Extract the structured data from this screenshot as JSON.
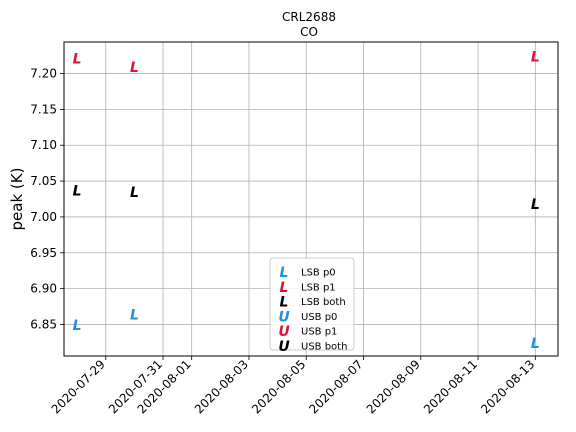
{
  "chart_data": {
    "type": "scatter",
    "title": "CRL2688",
    "subtitle": "CO",
    "xlabel": "",
    "ylabel": "peak (K)",
    "x_ticks": [
      "2020-07-29",
      "2020-07-31",
      "2020-08-01",
      "2020-08-03",
      "2020-08-05",
      "2020-08-07",
      "2020-08-09",
      "2020-08-11",
      "2020-08-13"
    ],
    "y_ticks": [
      "6.85",
      "6.90",
      "6.95",
      "7.00",
      "7.05",
      "7.10",
      "7.15",
      "7.20"
    ],
    "ylim": [
      6.806,
      7.244
    ],
    "xlim": [
      "2020-07-27T13:00",
      "2020-08-13T19:00"
    ],
    "grid": true,
    "legend_position": "lower-center",
    "series": [
      {
        "name": "LSB p0",
        "marker": "L",
        "color": "#1f8fe6",
        "points": [
          {
            "x": "2020-07-28",
            "y": 6.849
          },
          {
            "x": "2020-07-30",
            "y": 6.864
          },
          {
            "x": "2020-08-13",
            "y": 6.824
          }
        ]
      },
      {
        "name": "LSB p1",
        "marker": "L",
        "color": "#dc143c",
        "points": [
          {
            "x": "2020-07-28",
            "y": 7.221
          },
          {
            "x": "2020-07-30",
            "y": 7.209
          },
          {
            "x": "2020-08-13",
            "y": 7.224
          }
        ]
      },
      {
        "name": "LSB both",
        "marker": "L",
        "color": "#000000",
        "points": [
          {
            "x": "2020-07-28",
            "y": 7.037
          },
          {
            "x": "2020-07-30",
            "y": 7.035
          },
          {
            "x": "2020-08-13",
            "y": 7.018
          }
        ]
      },
      {
        "name": "USB p0",
        "marker": "U",
        "color": "#1f8fe6",
        "points": []
      },
      {
        "name": "USB p1",
        "marker": "U",
        "color": "#dc143c",
        "points": []
      },
      {
        "name": "USB both",
        "marker": "U",
        "color": "#000000",
        "points": []
      }
    ]
  }
}
